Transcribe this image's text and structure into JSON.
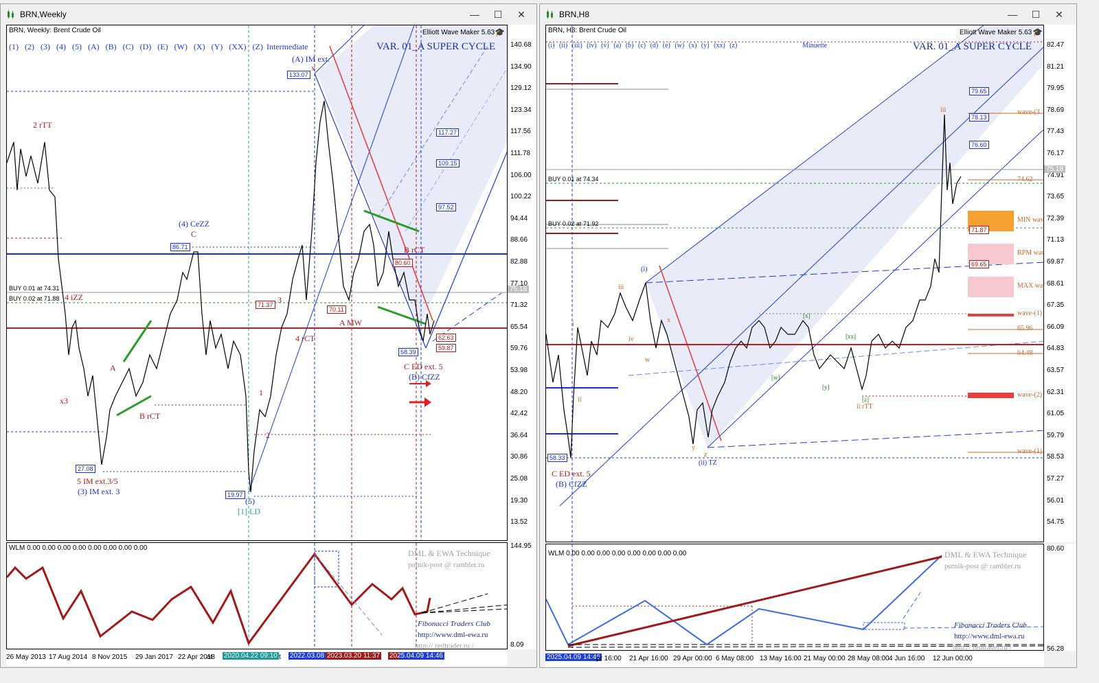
{
  "left": {
    "title": "BRN,Weekly",
    "header": "BRN, Weekly:  Brent Crude Oil",
    "wave_degrees": "(1) (2) (3) (4) (5) (A) (B) (C) (D) (E) (W) (X) (Y) (XX) (Z)",
    "degree_name": "Intermediate",
    "var_label": "VAR. 01_A SUPER CYCLE",
    "tool": "Elliott Wave Maker 5.63",
    "price_ticks": [
      "140.68",
      "134.90",
      "129.12",
      "123.34",
      "117.56",
      "111.78",
      "106.00",
      "100.22",
      "94.44",
      "88.66",
      "82.88",
      "77.10",
      "71.32",
      "65.54",
      "59.76",
      "53.98",
      "48.20",
      "42.42",
      "36.64",
      "30.86",
      "25.08",
      "19.30",
      "13.52"
    ],
    "current_price": "75.18",
    "buy1": "BUY 0.01 at 74.31",
    "buy2": "BUY 0.02 at 71.88",
    "time_labels": [
      "26 May 2013",
      "17 Aug 2014",
      "8 Nov 2015",
      "29 Jan 2017",
      "22 Apr 2018",
      "at",
      "ct"
    ],
    "time_tags": [
      "2020.04.22 09:10",
      "2022.03.08",
      "2023.03.20 11:37",
      "2025.04.09 14:46"
    ],
    "indicator": {
      "header": "WLM 0.00 0.00 0.00 0.00 0.00 0.00 0.00 0.00",
      "scale_top": "144.95",
      "scale_bottom": "8.09",
      "credit1": "DML & EWA Technique",
      "credit2": "putnik-post @ rambler.ru",
      "credit3": "Fibonacci    Traders    Club",
      "credit4": "http://www.dml-ewa.ru",
      "credit5": "http:// redtrader.ru /"
    },
    "levels": {
      "l133": "133.07",
      "l117": "117.27",
      "l109": "109.15",
      "l97": "97.52",
      "l86": "86.71",
      "l80": "80.60",
      "l71": "71.37",
      "l70": "70.11",
      "l63": "62.63",
      "l60": "59.87",
      "l58": "58.39",
      "l27": "27.08",
      "l20": "19.97"
    },
    "wave_labels": {
      "a_im": "(A) IM ext.",
      "four_cezz": "(4) CeZZ",
      "c": "C",
      "two_rtt": "2 rTT",
      "four_izz": "4 iZZ",
      "a": "A",
      "b_rct": "B rCT",
      "x3": "x3",
      "five_im": "5 IM ext.3/5",
      "three_im": "(3) IM ext. 3",
      "five_b": "(5)",
      "one_ld": "[1] LD",
      "one": "1",
      "two": "2",
      "three": "3",
      "four_rct": "4 rCT",
      "a_mw": "A MW",
      "b_rct2": "B rCT",
      "c_ed": "C ED ext. 5",
      "b_cfzz": "(B) CfZZ",
      "x": "x"
    }
  },
  "right": {
    "title": "BRN,H8",
    "header": "BRN, H8:  Brent Crude Oil",
    "wave_degrees": "(i) (ii) (iii) (iv) (v) (a) (b) (c) (d) (e) (w) (x) (y) (xx) (z)",
    "degree_name": "Minuette",
    "var_label": "VAR. 01_A SUPER CYCLE",
    "tool": "Elliott Wave Maker 5.63",
    "price_ticks": [
      "82.47",
      "81.21",
      "79.95",
      "78.69",
      "77.43",
      "76.17",
      "74.91",
      "73.65",
      "72.39",
      "71.13",
      "69.87",
      "68.61",
      "67.35",
      "66.09",
      "64.83",
      "63.57",
      "62.31",
      "61.05",
      "59.79",
      "58.53",
      "57.27",
      "56.01",
      "54.75"
    ],
    "current_price": "75.18",
    "buy1": "BUY 0.01 at 74.34",
    "buy2": "BUY 0.02 at 71.92",
    "time_labels": [
      "pr 16:00",
      "21 Apr 16:00",
      "29 Apr 00:00",
      "6 May 08:00",
      "13 May 16:00",
      "21 May 00:00",
      "28 May 08:00",
      "4 Jun 16:00",
      "12 Jun 00:00"
    ],
    "time_tags": [
      "2025.04.09 14:46"
    ],
    "indicator": {
      "header": "WLM 0.00 0.00 0.00 0.00 0.00 0.00 0.00 0.00",
      "scale_top": "80.60",
      "scale_bottom": "56.28",
      "credit1": "DML & EWA Technique",
      "credit2": "putnik-post @ rambler.ru",
      "credit3": "Fibonacci    Traders    Club",
      "credit4": "http://www.dml-ewa.ru",
      "credit5": "http:// redtrader.ru /"
    },
    "levels": {
      "l79": "79.65",
      "l78": "78.13",
      "l76": "76.60",
      "l74": "74.62",
      "l71": "71.87",
      "l69": "69.65",
      "l65": "65.96",
      "l64": "64.48",
      "l58": "58.33"
    },
    "zones": {
      "wave3": "wave-(3",
      "min": "MIN wav",
      "rpm": "RPM wav",
      "max": "MAX wav",
      "wave1": "wave-(1)",
      "wave2": "wave-(2)",
      "wave1b": "wave-(1)"
    },
    "wave_labels": {
      "i": "(i)",
      "ii_tz": "(ii) TZ",
      "c_ed": "C ED ext. 5",
      "b_cfzz": "(B) CfZZ",
      "ii_rtt": "ii rTT",
      "iii": "iii",
      "iv": "iv",
      "w": "w",
      "x": "x",
      "y": "y",
      "z": "z",
      "ii": "ii",
      "i_s": "i",
      "iii_small": "iii",
      "w_b": "[w]",
      "x_b": "[x]",
      "y_b": "[y]",
      "xx_b": "[xx]",
      "z_b": "[z]"
    }
  }
}
